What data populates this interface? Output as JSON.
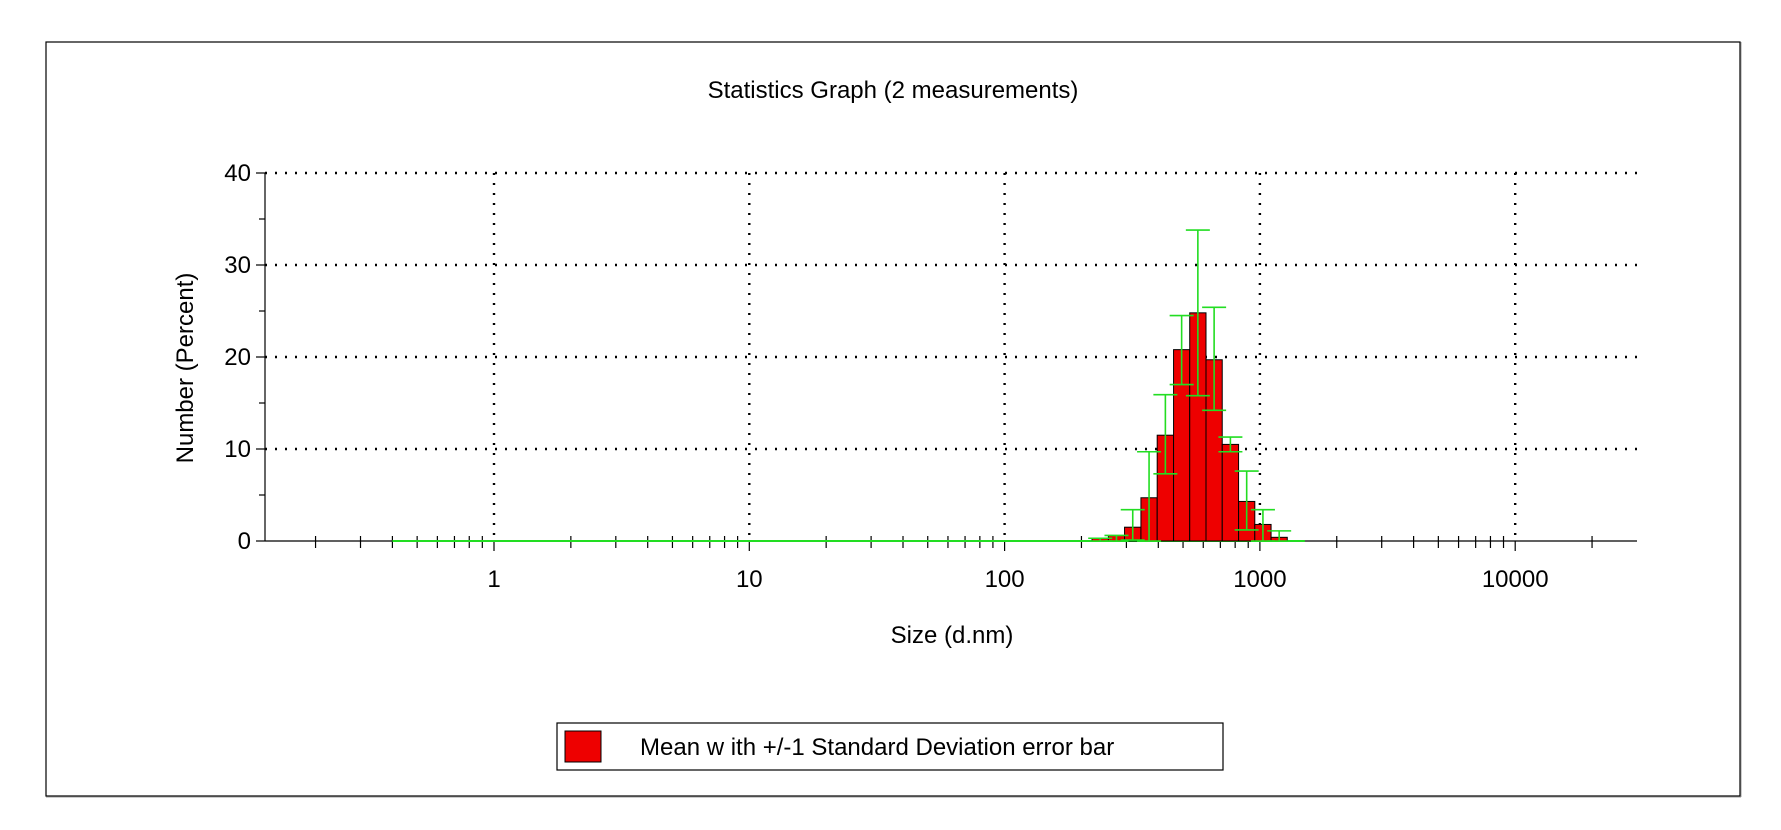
{
  "chart_data": {
    "type": "bar",
    "title": "Statistics Graph (2 measurements)",
    "xlabel": "Size (d.nm)",
    "ylabel": "Number (Percent)",
    "x_scale": "log",
    "xlim": [
      0.1,
      30000
    ],
    "ylim": [
      0,
      40
    ],
    "x_ticks": [
      1,
      10,
      100,
      1000,
      10000
    ],
    "y_ticks": [
      0,
      10,
      20,
      30,
      40
    ],
    "grid": "dotted",
    "legend": {
      "position": "bottom-center",
      "entries": [
        "Mean w ith +/-1 Standard Deviation error bar"
      ]
    },
    "colors": {
      "bar_fill": "#ee0000",
      "bar_edge": "#000000",
      "error_bar": "#22dd22",
      "axis": "#000000"
    },
    "error_baseline_range": [
      0.4,
      1500
    ],
    "series": [
      {
        "name": "Mean w ith +/-1 Standard Deviation error bar",
        "size_bin_edges": [
          220,
          255,
          295,
          342,
          396,
          459,
          531,
          615,
          712,
          825,
          955,
          1106,
          1280
        ],
        "values": [
          0.3,
          0.6,
          1.5,
          4.7,
          11.5,
          20.8,
          24.8,
          19.7,
          10.5,
          4.3,
          1.8,
          0.4
        ],
        "error_low": [
          0.0,
          0.0,
          0.1,
          0.0,
          7.3,
          17.0,
          15.8,
          14.2,
          9.7,
          1.2,
          0.0,
          0.0
        ],
        "error_high": [
          0.3,
          0.6,
          3.4,
          9.7,
          15.9,
          24.5,
          33.8,
          25.4,
          11.3,
          7.6,
          3.4,
          1.1
        ]
      }
    ]
  }
}
